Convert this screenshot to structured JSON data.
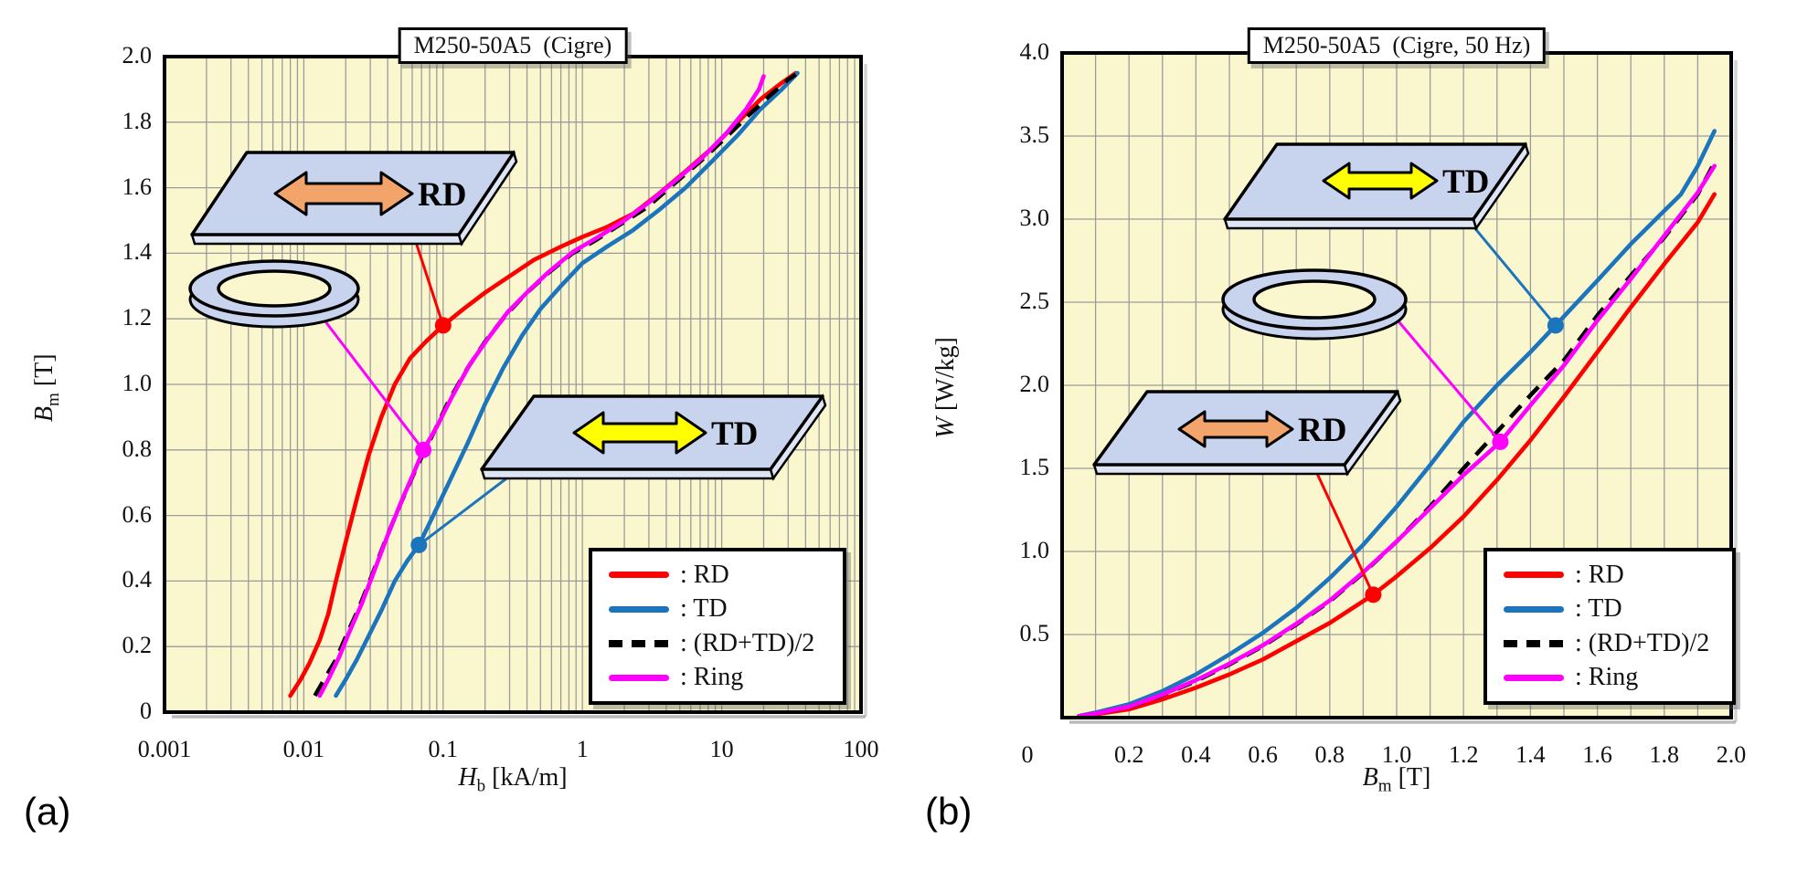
{
  "figure": {
    "panels": [
      {
        "label": "(a)",
        "title": "M250-50A5  (Cigre)",
        "x_axis": {
          "symbol": "H",
          "subscript": "b",
          "unit": " [kA/m]",
          "scale": "log",
          "ticks": [
            "0.001",
            "0.01",
            "0.1",
            "1",
            "10",
            "100"
          ]
        },
        "y_axis": {
          "symbol": "B",
          "subscript": "m",
          "unit": " [T]",
          "scale": "linear",
          "ticks": [
            "0",
            "0.2",
            "0.4",
            "0.6",
            "0.8",
            "1.0",
            "1.2",
            "1.4",
            "1.6",
            "1.8",
            "2.0"
          ]
        },
        "illustrations": [
          {
            "kind": "sheet",
            "direction_label": "RD"
          },
          {
            "kind": "ring"
          },
          {
            "kind": "sheet",
            "direction_label": "TD"
          }
        ]
      },
      {
        "label": "(b)",
        "title": "M250-50A5  (Cigre, 50 Hz)",
        "x_axis": {
          "symbol": "B",
          "subscript": "m",
          "unit": " [T]",
          "scale": "linear",
          "ticks": [
            "0",
            "0.2",
            "0.4",
            "0.6",
            "0.8",
            "1.0",
            "1.2",
            "1.4",
            "1.6",
            "1.8",
            "2.0"
          ]
        },
        "y_axis": {
          "symbol": "W",
          "subscript": "",
          "unit": " [W/kg]",
          "scale": "linear",
          "ticks": [
            "0.5",
            "1.0",
            "1.5",
            "2.0",
            "2.5",
            "3.0",
            "3.5",
            "4.0"
          ]
        },
        "illustrations": [
          {
            "kind": "sheet",
            "direction_label": "TD"
          },
          {
            "kind": "ring"
          },
          {
            "kind": "sheet",
            "direction_label": "RD"
          }
        ]
      }
    ],
    "legend_items": [
      {
        "label": ": RD",
        "series": "RD",
        "color": "#FF0000",
        "style": "solid"
      },
      {
        "label": ": TD",
        "series": "TD",
        "color": "#1C75BC",
        "style": "solid"
      },
      {
        "label": ": (RD+TD)/2",
        "series": "(RD+TD)/2",
        "color": "#000000",
        "style": "dashed"
      },
      {
        "label": ": Ring",
        "series": "Ring",
        "color": "#FF00FF",
        "style": "solid"
      }
    ],
    "colors": {
      "plot_bg": "#FAF7CF",
      "grid": "#9B9B9B",
      "frame": "#000000",
      "rd": "#FF0000",
      "td": "#1C75BC",
      "mean": "#000000",
      "ring_series": "#FF00FF",
      "plate_fill": "#C8D4EE",
      "plate_side": "#DEE6F6",
      "arrow_rd": "#F2A46A",
      "arrow_td": "#FFFF00",
      "shadow": "#9E9E9E"
    }
  },
  "chart_data": [
    {
      "type": "line",
      "title": "M250-50A5 (Cigre)",
      "xlabel": "H_b [kA/m]",
      "ylabel": "B_m [T]",
      "x_scale": "log",
      "xlim": [
        0.001,
        100
      ],
      "ylim": [
        0,
        2.0
      ],
      "grid": true,
      "legend_position": "lower right",
      "series": [
        {
          "name": "RD",
          "color": "#FF0000",
          "dash": false,
          "points": [
            [
              0.008,
              0.05
            ],
            [
              0.0095,
              0.1
            ],
            [
              0.011,
              0.15
            ],
            [
              0.013,
              0.22
            ],
            [
              0.015,
              0.3
            ],
            [
              0.017,
              0.4
            ],
            [
              0.02,
              0.52
            ],
            [
              0.024,
              0.65
            ],
            [
              0.029,
              0.78
            ],
            [
              0.036,
              0.9
            ],
            [
              0.045,
              1.0
            ],
            [
              0.058,
              1.08
            ],
            [
              0.075,
              1.13
            ],
            [
              0.1,
              1.18
            ],
            [
              0.14,
              1.23
            ],
            [
              0.2,
              1.28
            ],
            [
              0.3,
              1.33
            ],
            [
              0.45,
              1.38
            ],
            [
              0.7,
              1.42
            ],
            [
              1.0,
              1.45
            ],
            [
              1.5,
              1.48
            ],
            [
              2.3,
              1.52
            ],
            [
              3.5,
              1.58
            ],
            [
              5.5,
              1.65
            ],
            [
              8.5,
              1.72
            ],
            [
              13,
              1.8
            ],
            [
              19,
              1.87
            ],
            [
              27,
              1.92
            ],
            [
              34,
              1.95
            ]
          ]
        },
        {
          "name": "TD",
          "color": "#1C75BC",
          "dash": false,
          "points": [
            [
              0.017,
              0.05
            ],
            [
              0.02,
              0.1
            ],
            [
              0.024,
              0.16
            ],
            [
              0.029,
              0.23
            ],
            [
              0.036,
              0.31
            ],
            [
              0.045,
              0.4
            ],
            [
              0.055,
              0.46
            ],
            [
              0.067,
              0.51
            ],
            [
              0.085,
              0.6
            ],
            [
              0.11,
              0.7
            ],
            [
              0.15,
              0.82
            ],
            [
              0.2,
              0.94
            ],
            [
              0.27,
              1.05
            ],
            [
              0.37,
              1.15
            ],
            [
              0.5,
              1.23
            ],
            [
              0.7,
              1.3
            ],
            [
              1.0,
              1.37
            ],
            [
              1.5,
              1.42
            ],
            [
              2.3,
              1.47
            ],
            [
              3.5,
              1.53
            ],
            [
              5.5,
              1.6
            ],
            [
              8.5,
              1.68
            ],
            [
              13,
              1.76
            ],
            [
              19,
              1.84
            ],
            [
              27,
              1.9
            ],
            [
              35,
              1.95
            ]
          ]
        },
        {
          "name": "(RD+TD)/2",
          "color": "#000000",
          "dash": true,
          "points": [
            [
              0.012,
              0.05
            ],
            [
              0.014,
              0.1
            ],
            [
              0.017,
              0.16
            ],
            [
              0.02,
              0.23
            ],
            [
              0.025,
              0.32
            ],
            [
              0.031,
              0.42
            ],
            [
              0.039,
              0.53
            ],
            [
              0.05,
              0.64
            ],
            [
              0.065,
              0.75
            ],
            [
              0.085,
              0.85
            ],
            [
              0.11,
              0.95
            ],
            [
              0.15,
              1.05
            ],
            [
              0.2,
              1.13
            ],
            [
              0.28,
              1.21
            ],
            [
              0.4,
              1.28
            ],
            [
              0.57,
              1.34
            ],
            [
              0.85,
              1.4
            ],
            [
              1.25,
              1.44
            ],
            [
              1.9,
              1.49
            ],
            [
              2.9,
              1.54
            ],
            [
              4.5,
              1.61
            ],
            [
              7.0,
              1.68
            ],
            [
              10.5,
              1.75
            ],
            [
              15.5,
              1.82
            ],
            [
              22,
              1.88
            ],
            [
              30,
              1.93
            ],
            [
              34,
              1.945
            ]
          ]
        },
        {
          "name": "Ring",
          "color": "#FF00FF",
          "dash": false,
          "points": [
            [
              0.013,
              0.05
            ],
            [
              0.015,
              0.1
            ],
            [
              0.018,
              0.17
            ],
            [
              0.021,
              0.24
            ],
            [
              0.026,
              0.33
            ],
            [
              0.032,
              0.43
            ],
            [
              0.04,
              0.54
            ],
            [
              0.051,
              0.65
            ],
            [
              0.063,
              0.74
            ],
            [
              0.072,
              0.8
            ],
            [
              0.09,
              0.87
            ],
            [
              0.115,
              0.96
            ],
            [
              0.155,
              1.06
            ],
            [
              0.21,
              1.14
            ],
            [
              0.29,
              1.22
            ],
            [
              0.41,
              1.285
            ],
            [
              0.58,
              1.345
            ],
            [
              0.86,
              1.405
            ],
            [
              1.3,
              1.45
            ],
            [
              2.0,
              1.5
            ],
            [
              3.0,
              1.555
            ],
            [
              4.6,
              1.62
            ],
            [
              7.2,
              1.69
            ],
            [
              11,
              1.77
            ],
            [
              15,
              1.84
            ],
            [
              18.5,
              1.9
            ],
            [
              20,
              1.94
            ]
          ]
        }
      ],
      "callouts": [
        {
          "series": "RD",
          "x": 0.1,
          "y": 1.18
        },
        {
          "series": "Ring",
          "x": 0.072,
          "y": 0.8
        },
        {
          "series": "TD",
          "x": 0.067,
          "y": 0.51
        }
      ]
    },
    {
      "type": "line",
      "title": "M250-50A5 (Cigre, 50 Hz)",
      "xlabel": "B_m [T]",
      "ylabel": "W [W/kg]",
      "x_scale": "linear",
      "xlim": [
        0,
        2.0
      ],
      "ylim": [
        0,
        4.0
      ],
      "grid": true,
      "legend_position": "lower right",
      "series": [
        {
          "name": "RD",
          "color": "#FF0000",
          "dash": false,
          "points": [
            [
              0.05,
              0.005
            ],
            [
              0.1,
              0.02
            ],
            [
              0.2,
              0.05
            ],
            [
              0.3,
              0.11
            ],
            [
              0.4,
              0.18
            ],
            [
              0.5,
              0.26
            ],
            [
              0.6,
              0.35
            ],
            [
              0.7,
              0.46
            ],
            [
              0.8,
              0.57
            ],
            [
              0.93,
              0.74
            ],
            [
              1.0,
              0.85
            ],
            [
              1.1,
              1.02
            ],
            [
              1.2,
              1.21
            ],
            [
              1.3,
              1.43
            ],
            [
              1.4,
              1.67
            ],
            [
              1.5,
              1.93
            ],
            [
              1.6,
              2.2
            ],
            [
              1.7,
              2.47
            ],
            [
              1.75,
              2.6
            ],
            [
              1.8,
              2.73
            ],
            [
              1.9,
              2.98
            ],
            [
              1.95,
              3.15
            ]
          ]
        },
        {
          "name": "TD",
          "color": "#1C75BC",
          "dash": false,
          "points": [
            [
              0.05,
              0.01
            ],
            [
              0.1,
              0.03
            ],
            [
              0.2,
              0.08
            ],
            [
              0.3,
              0.16
            ],
            [
              0.4,
              0.26
            ],
            [
              0.5,
              0.38
            ],
            [
              0.6,
              0.51
            ],
            [
              0.7,
              0.66
            ],
            [
              0.8,
              0.84
            ],
            [
              0.9,
              1.04
            ],
            [
              1.0,
              1.27
            ],
            [
              1.1,
              1.52
            ],
            [
              1.2,
              1.78
            ],
            [
              1.3,
              2.0
            ],
            [
              1.4,
              2.2
            ],
            [
              1.475,
              2.36
            ],
            [
              1.6,
              2.63
            ],
            [
              1.7,
              2.85
            ],
            [
              1.8,
              3.05
            ],
            [
              1.85,
              3.15
            ],
            [
              1.9,
              3.32
            ],
            [
              1.95,
              3.53
            ]
          ]
        },
        {
          "name": "(RD+TD)/2",
          "color": "#000000",
          "dash": true,
          "points": [
            [
              0.05,
              0.008
            ],
            [
              0.1,
              0.025
            ],
            [
              0.2,
              0.065
            ],
            [
              0.3,
              0.135
            ],
            [
              0.4,
              0.22
            ],
            [
              0.5,
              0.32
            ],
            [
              0.6,
              0.43
            ],
            [
              0.7,
              0.56
            ],
            [
              0.8,
              0.7
            ],
            [
              0.9,
              0.87
            ],
            [
              1.0,
              1.06
            ],
            [
              1.1,
              1.27
            ],
            [
              1.2,
              1.5
            ],
            [
              1.3,
              1.72
            ],
            [
              1.4,
              1.94
            ],
            [
              1.5,
              2.15
            ],
            [
              1.6,
              2.42
            ],
            [
              1.7,
              2.66
            ],
            [
              1.8,
              2.89
            ],
            [
              1.9,
              3.15
            ],
            [
              1.95,
              3.34
            ]
          ]
        },
        {
          "name": "Ring",
          "color": "#FF00FF",
          "dash": false,
          "points": [
            [
              0.05,
              0.008
            ],
            [
              0.1,
              0.025
            ],
            [
              0.2,
              0.066
            ],
            [
              0.3,
              0.138
            ],
            [
              0.4,
              0.225
            ],
            [
              0.5,
              0.325
            ],
            [
              0.6,
              0.435
            ],
            [
              0.7,
              0.565
            ],
            [
              0.8,
              0.705
            ],
            [
              0.9,
              0.875
            ],
            [
              1.0,
              1.06
            ],
            [
              1.1,
              1.26
            ],
            [
              1.2,
              1.46
            ],
            [
              1.31,
              1.66
            ],
            [
              1.4,
              1.88
            ],
            [
              1.5,
              2.12
            ],
            [
              1.6,
              2.39
            ],
            [
              1.7,
              2.64
            ],
            [
              1.8,
              2.9
            ],
            [
              1.9,
              3.16
            ],
            [
              1.95,
              3.32
            ]
          ]
        }
      ],
      "callouts": [
        {
          "series": "RD",
          "x": 0.93,
          "y": 0.74
        },
        {
          "series": "Ring",
          "x": 1.31,
          "y": 1.66
        },
        {
          "series": "TD",
          "x": 1.475,
          "y": 2.36
        }
      ]
    }
  ]
}
